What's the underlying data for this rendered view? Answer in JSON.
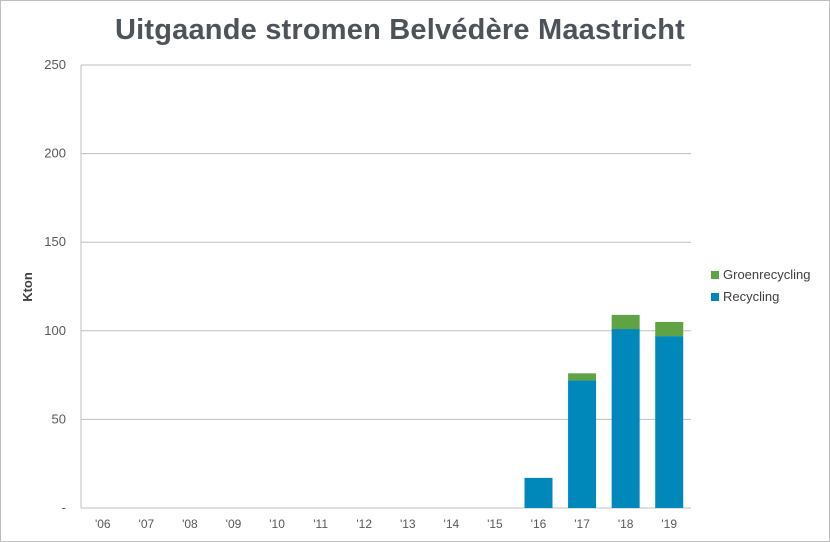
{
  "chart_data": {
    "type": "bar",
    "stacked": true,
    "title": "Uitgaande stromen Belvédère Maastricht",
    "ylabel": "Kton",
    "ylim": [
      0,
      250
    ],
    "yticks": [
      {
        "value": 0,
        "label": "-"
      },
      {
        "value": 50,
        "label": "50"
      },
      {
        "value": 100,
        "label": "100"
      },
      {
        "value": 150,
        "label": "150"
      },
      {
        "value": 200,
        "label": "200"
      },
      {
        "value": 250,
        "label": "250"
      }
    ],
    "grid": true,
    "legend_position": "right",
    "categories": [
      "'06",
      "'07",
      "'08",
      "'09",
      "'10",
      "'11",
      "'12",
      "'13",
      "'14",
      "'15",
      "'16",
      "'17",
      "'18",
      "'19"
    ],
    "series": [
      {
        "name": "Recycling",
        "color": "#0088bb",
        "values": [
          0,
          0,
          0,
          0,
          0,
          0,
          0,
          0,
          0,
          0,
          17,
          72,
          101,
          97
        ]
      },
      {
        "name": "Groenrecycling",
        "color": "#5fa344",
        "values": [
          0,
          0,
          0,
          0,
          0,
          0,
          0,
          0,
          0,
          0,
          0,
          4,
          8,
          8
        ]
      }
    ],
    "legend_order": [
      "Groenrecycling",
      "Recycling"
    ]
  }
}
